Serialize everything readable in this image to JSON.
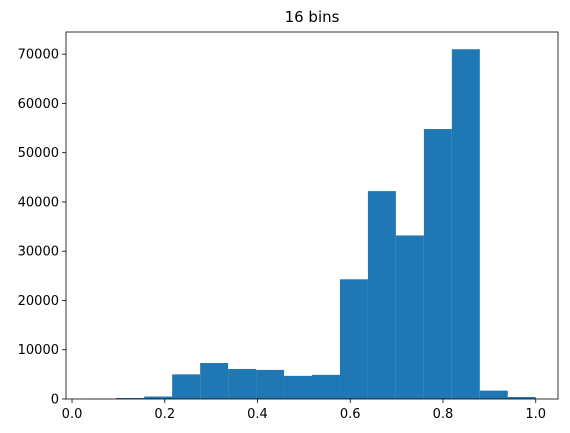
{
  "chart_data": {
    "type": "histogram",
    "title": "16 bins",
    "bins": [
      0.035,
      0.0953,
      0.1556,
      0.2159,
      0.2763,
      0.3366,
      0.3969,
      0.4572,
      0.5175,
      0.5778,
      0.6381,
      0.6984,
      0.7588,
      0.8191,
      0.8794,
      0.9397,
      1.0
    ],
    "values": [
      50,
      200,
      500,
      5000,
      7300,
      6100,
      5900,
      4700,
      4900,
      24300,
      42200,
      33200,
      54800,
      71000,
      1700,
      400
    ],
    "color": "#1f77b4",
    "xlim": [
      -0.013,
      1.048
    ],
    "xticks": [
      {
        "value": 0,
        "label": "0.0"
      },
      {
        "value": 0.2,
        "label": "0.2"
      },
      {
        "value": 0.4,
        "label": "0.4"
      },
      {
        "value": 0.6,
        "label": "0.6"
      },
      {
        "value": 0.8,
        "label": "0.8"
      },
      {
        "value": 1,
        "label": "1.0"
      }
    ],
    "ylim": [
      0,
      74500
    ],
    "yticks": [
      0,
      10000,
      20000,
      30000,
      40000,
      50000,
      60000,
      70000
    ]
  }
}
